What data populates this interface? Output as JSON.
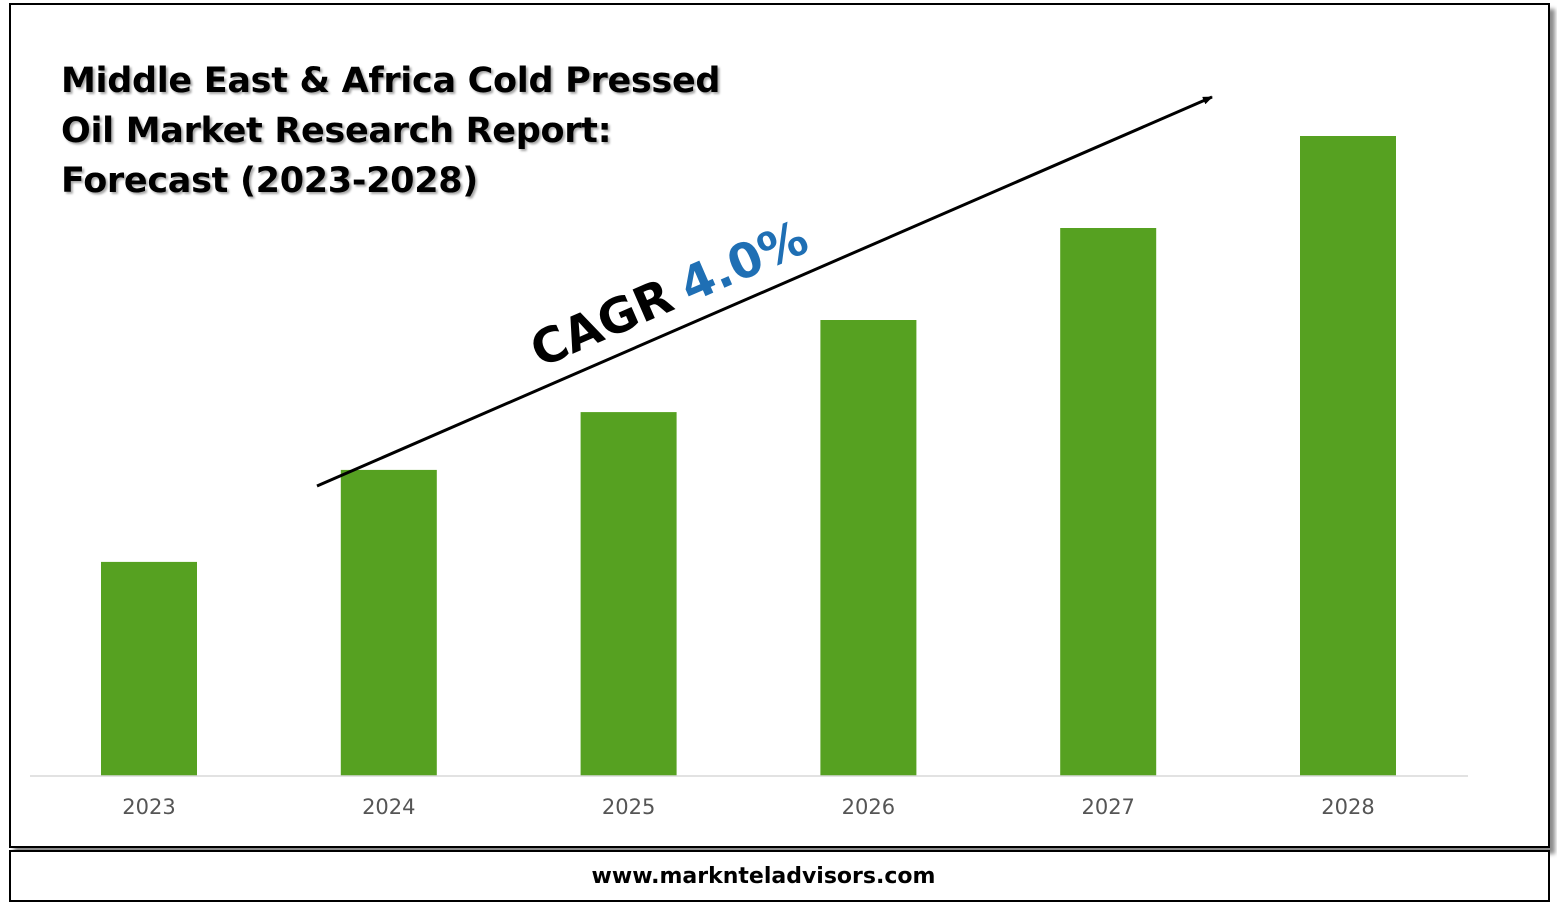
{
  "footer": {
    "website": "www.marknteladvisors.com"
  },
  "chart_data": {
    "type": "bar",
    "title_lines": [
      "Middle East & Africa Cold Pressed",
      "Oil Market Research Report:",
      "Forecast (2023-2028)"
    ],
    "categories": [
      "2023",
      "2024",
      "2025",
      "2026",
      "2027",
      "2028"
    ],
    "values": [
      1.0,
      1.43,
      1.7,
      2.13,
      2.56,
      2.99
    ],
    "ylim": [
      0,
      3.2
    ],
    "grid": false,
    "legend": "none",
    "annotation": {
      "label": "CAGR",
      "value": "4.0%"
    },
    "colors": {
      "bar": "#56a121",
      "axis": "#d9d9d9",
      "cagr_value": "#1f6fb4"
    }
  }
}
